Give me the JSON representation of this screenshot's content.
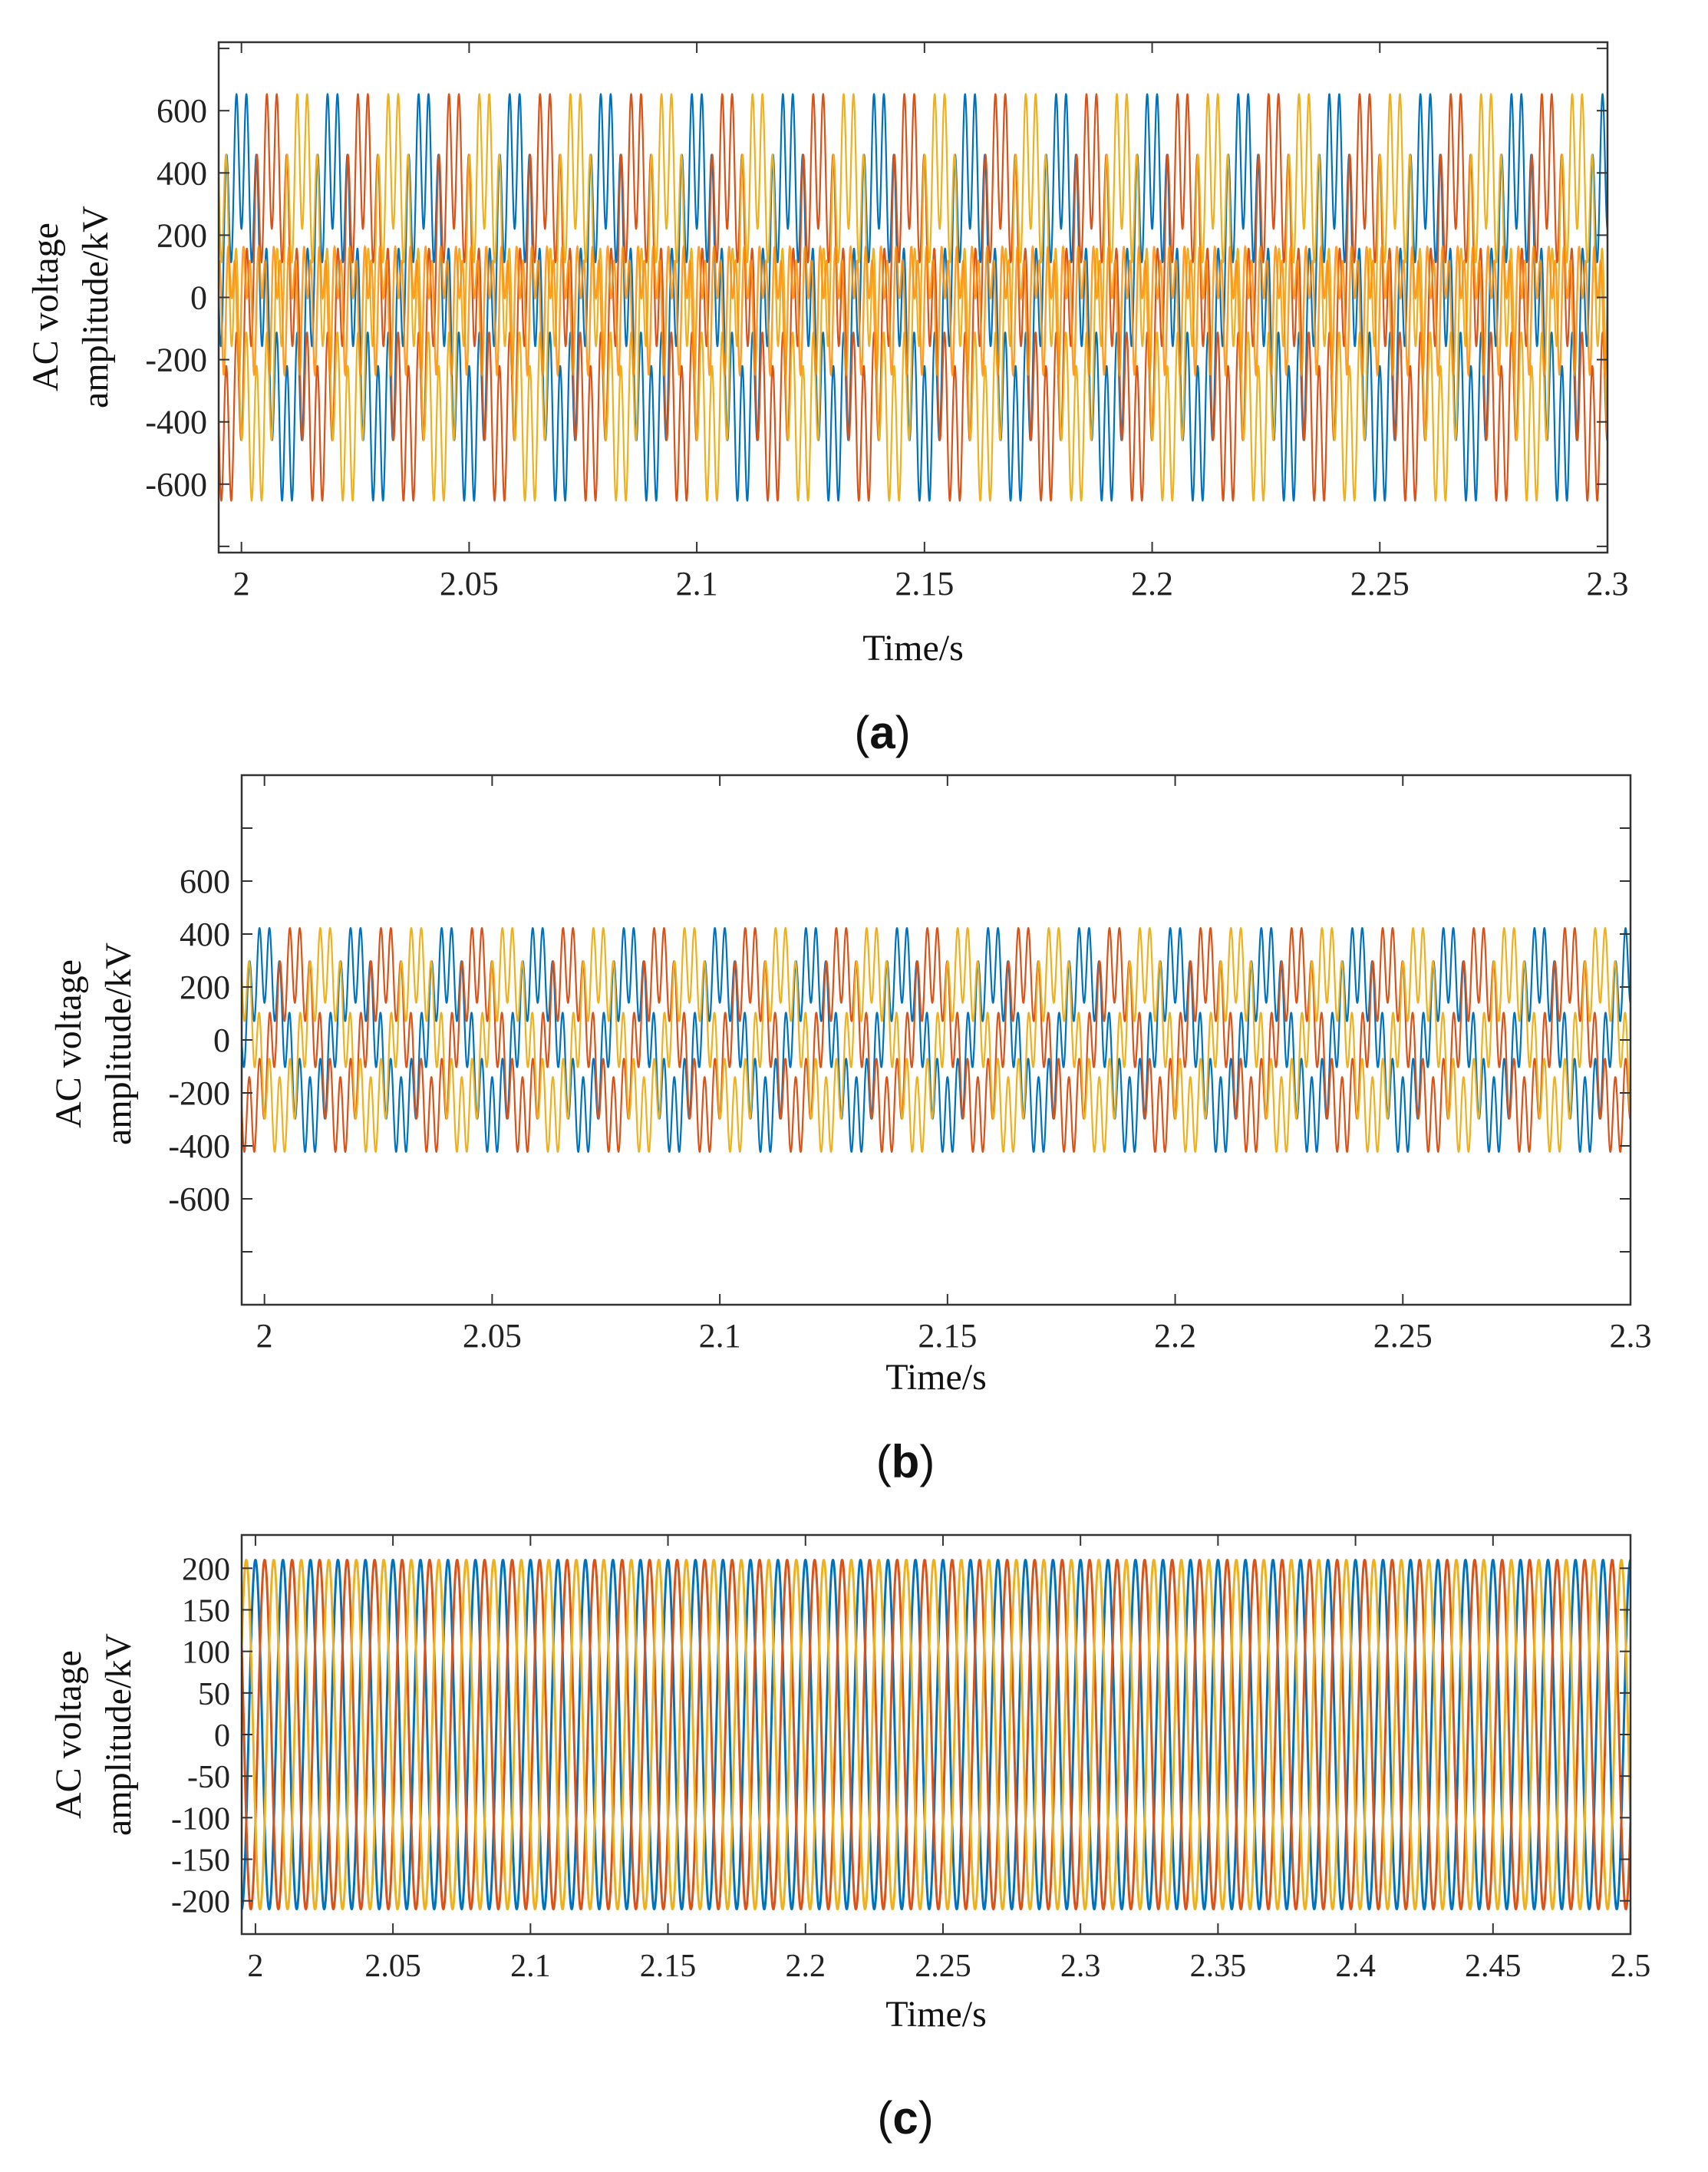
{
  "colors": {
    "phase_a": "#0072BD",
    "phase_b": "#D95319",
    "phase_c": "#EDB120",
    "harmonic": "#FF8C00",
    "axes": "#333333"
  },
  "chart_data": [
    {
      "type": "line",
      "panel_label": "(a)",
      "panel_letter": "a",
      "xlabel": "Time/s",
      "ylabel_line1": "AC voltage",
      "ylabel_line2": "amplitude/kV",
      "xlim": [
        1.995,
        2.3
      ],
      "ylim": [
        -820,
        820
      ],
      "xticks": [
        2,
        2.05,
        2.1,
        2.15,
        2.2,
        2.25,
        2.3
      ],
      "xtick_labels": [
        "2",
        "2.05",
        "2.1",
        "2.15",
        "2.2",
        "2.25",
        "2.3"
      ],
      "yticks": [
        -800,
        -600,
        -400,
        -200,
        0,
        200,
        400,
        600,
        800
      ],
      "ytick_labels": [
        "",
        "-600",
        "-400",
        "-200",
        "0",
        "200",
        "400",
        "600",
        ""
      ],
      "grid": false,
      "waveform": {
        "fundamental_hz": 50,
        "fundamental_amplitude_kv": 450,
        "harmonic_hz": 450,
        "harmonic_amplitude_kv": 230,
        "extra_harmonic_trace_amplitude_kv": 250
      },
      "series": [
        {
          "phase_deg": 90
        },
        {
          "phase_deg": -30
        },
        {
          "phase_deg": 210
        }
      ]
    },
    {
      "type": "line",
      "panel_label": "(b)",
      "panel_letter": "b",
      "xlabel": "Time/s",
      "ylabel_line1": "AC voltage",
      "ylabel_line2": "amplitude/kV",
      "xlim": [
        1.995,
        2.3
      ],
      "ylim": [
        -1000,
        1000
      ],
      "xticks": [
        2,
        2.05,
        2.1,
        2.15,
        2.2,
        2.25,
        2.3
      ],
      "xtick_labels": [
        "2",
        "2.05",
        "2.1",
        "2.15",
        "2.2",
        "2.25",
        "2.3"
      ],
      "yticks": [
        -800,
        -600,
        -400,
        -200,
        0,
        200,
        400,
        600,
        800
      ],
      "ytick_labels": [
        "",
        "-600",
        "-400",
        "-200",
        "0",
        "200",
        "400",
        "600",
        ""
      ],
      "grid": false,
      "waveform": {
        "fundamental_hz": 50,
        "fundamental_amplitude_kv": 290,
        "harmonic_hz": 450,
        "harmonic_amplitude_kv": 150
      },
      "series": [
        {
          "phase_deg": 90
        },
        {
          "phase_deg": -30
        },
        {
          "phase_deg": 210
        }
      ]
    },
    {
      "type": "line",
      "panel_label": "(c)",
      "panel_letter": "c",
      "xlabel": "Time/s",
      "ylabel_line1": "AC voltage",
      "ylabel_line2": "amplitude/kV",
      "xlim": [
        1.995,
        2.5
      ],
      "ylim": [
        -240,
        240
      ],
      "xticks": [
        2,
        2.05,
        2.1,
        2.15,
        2.2,
        2.25,
        2.3,
        2.35,
        2.4,
        2.45,
        2.5
      ],
      "xtick_labels": [
        "2",
        "2.05",
        "2.1",
        "2.15",
        "2.2",
        "2.25",
        "2.3",
        "2.35",
        "2.4",
        "2.45",
        "2.5"
      ],
      "yticks": [
        -200,
        -150,
        -100,
        -50,
        0,
        50,
        100,
        150,
        200
      ],
      "ytick_labels": [
        "-200",
        "-150",
        "-100",
        "-50",
        "0",
        "50",
        "100",
        "150",
        "200"
      ],
      "grid": false,
      "waveform": {
        "fundamental_hz": 100,
        "fundamental_amplitude_kv": 210,
        "harmonic_hz": 0,
        "harmonic_amplitude_kv": 0
      },
      "series": [
        {
          "phase_deg": 90
        },
        {
          "phase_deg": -30
        },
        {
          "phase_deg": 210
        }
      ]
    }
  ]
}
